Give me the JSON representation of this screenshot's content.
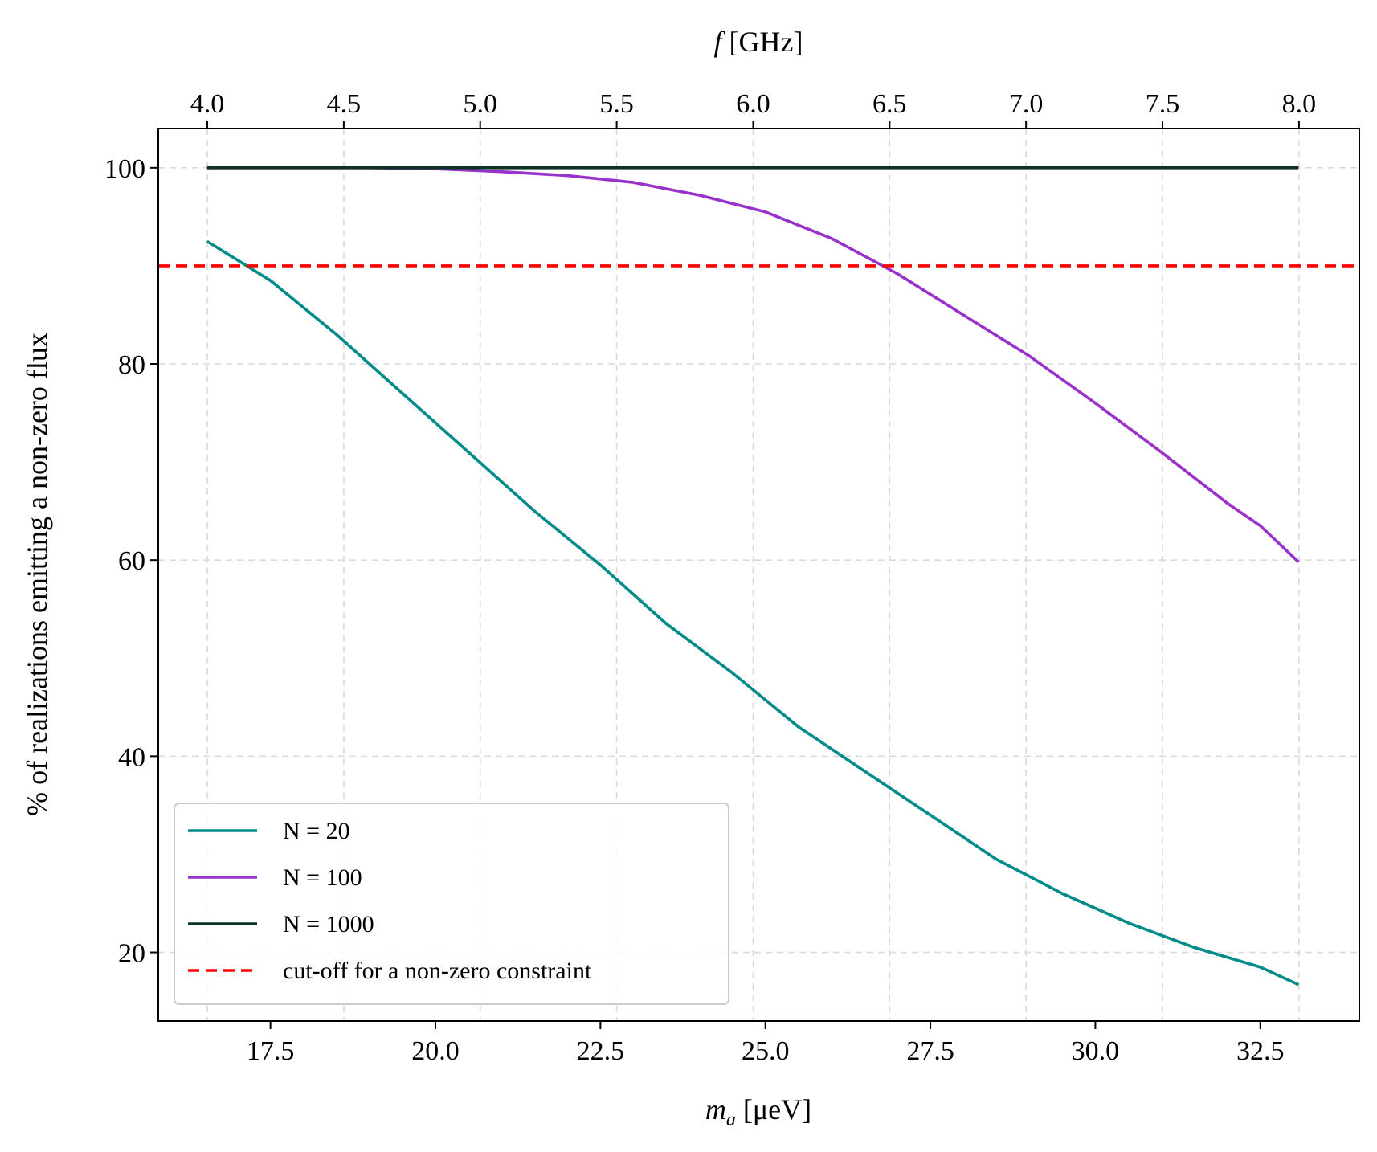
{
  "chart_data": {
    "type": "line",
    "title": "",
    "xlabel_prefix": "m",
    "xlabel_sub": "a",
    "xlabel_rest": " [μeV]",
    "x2label_var": "f",
    "x2label_rest": "  [GHz]",
    "ylabel": "% of realizations emitting a non-zero flux",
    "xlim": [
      15.8,
      34.0
    ],
    "ylim": [
      13.0,
      104.0
    ],
    "x_ticks": [
      17.5,
      20.0,
      22.5,
      25.0,
      27.5,
      30.0,
      32.5
    ],
    "x_tick_labels": [
      "17.5",
      "20.0",
      "22.5",
      "25.0",
      "27.5",
      "30.0",
      "32.5"
    ],
    "y_ticks": [
      20,
      40,
      60,
      80,
      100
    ],
    "y_tick_labels": [
      "20",
      "40",
      "60",
      "80",
      "100"
    ],
    "x2_ticks_ghz": [
      4.0,
      4.5,
      5.0,
      5.5,
      6.0,
      6.5,
      7.0,
      7.5,
      8.0
    ],
    "x2_tick_labels": [
      "4.0",
      "4.5",
      "5.0",
      "5.5",
      "6.0",
      "6.5",
      "7.0",
      "7.5",
      "8.0"
    ],
    "ghz_to_uev": 4.1357,
    "grid": true,
    "legend_position": "lower-left",
    "series": [
      {
        "name": "N = 20",
        "color": "#008b8b",
        "style": "solid",
        "x": [
          16.54,
          17.5,
          18.5,
          19.5,
          20.5,
          21.5,
          22.5,
          23.5,
          24.5,
          25.5,
          26.5,
          27.5,
          28.5,
          29.5,
          30.5,
          31.5,
          32.5,
          33.08
        ],
        "values": [
          92.5,
          88.5,
          83.0,
          77.0,
          71.0,
          65.0,
          59.5,
          53.5,
          48.5,
          43.0,
          38.5,
          34.0,
          29.5,
          26.0,
          23.0,
          20.5,
          18.5,
          16.7
        ]
      },
      {
        "name": "N = 100",
        "color": "#9932cc",
        "style": "solid",
        "x": [
          16.54,
          18.0,
          19.0,
          20.0,
          21.0,
          22.0,
          23.0,
          24.0,
          25.0,
          26.0,
          27.0,
          28.0,
          29.0,
          30.0,
          31.0,
          32.0,
          32.5,
          33.08
        ],
        "values": [
          100.0,
          100.0,
          100.0,
          99.9,
          99.6,
          99.2,
          98.5,
          97.2,
          95.5,
          92.8,
          89.2,
          85.0,
          80.8,
          76.0,
          71.0,
          65.8,
          63.5,
          59.8
        ]
      },
      {
        "name": "N = 1000",
        "color": "#0d3326",
        "style": "solid",
        "x": [
          16.54,
          33.08
        ],
        "values": [
          100.0,
          100.0
        ]
      },
      {
        "name": "cut-off for a non-zero constraint",
        "color": "#ff0000",
        "style": "dashed",
        "x": [
          15.8,
          34.0
        ],
        "values": [
          90.0,
          90.0
        ]
      }
    ]
  }
}
